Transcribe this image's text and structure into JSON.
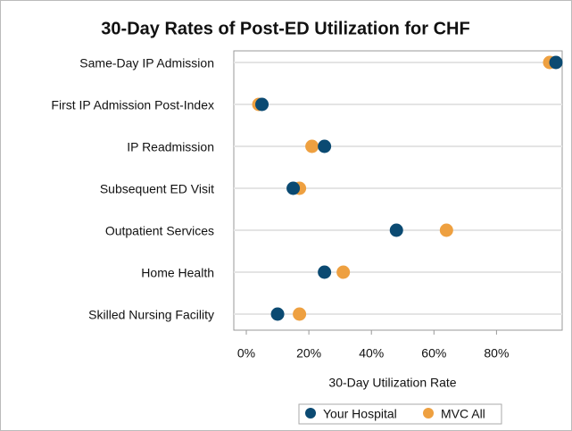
{
  "chart_data": {
    "type": "dot",
    "title": "30-Day Rates of Post-ED Utilization for CHF",
    "x_label": "30-Day Utilization Rate",
    "categories": [
      "Same-Day IP Admission",
      "First IP Admission Post-Index",
      "IP Readmission",
      "Subsequent ED Visit",
      "Outpatient Services",
      "Home Health",
      "Skilled Nursing Facility"
    ],
    "series": [
      {
        "name": "Your Hospital",
        "color": "#0b4a72",
        "values": [
          99,
          5,
          25,
          15,
          48,
          25,
          10
        ]
      },
      {
        "name": "MVC All",
        "color": "#eea040",
        "values": [
          97,
          4,
          21,
          17,
          64,
          31,
          17
        ]
      }
    ],
    "xlim": [
      -4,
      101
    ],
    "xticks": [
      {
        "value": 0,
        "label": "0%"
      },
      {
        "value": 20,
        "label": "20%"
      },
      {
        "value": 40,
        "label": "40%"
      },
      {
        "value": 60,
        "label": "60%"
      },
      {
        "value": 80,
        "label": "80%"
      }
    ],
    "grid": true,
    "legend": "bottom"
  }
}
